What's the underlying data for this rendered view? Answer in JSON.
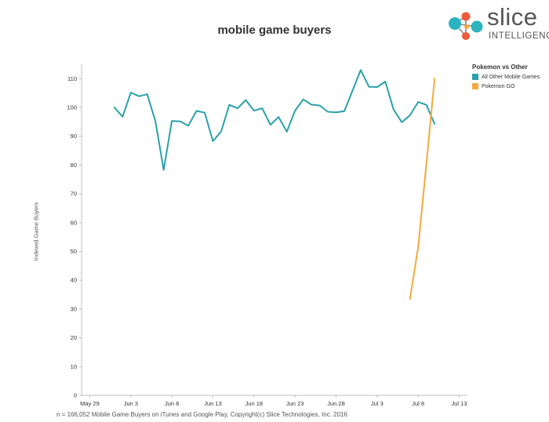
{
  "header": {
    "title": "mobile game buyers"
  },
  "logo": {
    "word": "slice",
    "sub": "INTELLIGENCE"
  },
  "footnote": "n = 166,052 Mobile Game Buyers on iTunes and Google Play, Copyright(c) Slice Technologies, Inc. 2016",
  "colors": {
    "teal": "#2aa1ab",
    "orange": "#f5a93b",
    "axis": "#bfbfbf",
    "grid": "#e8e8e8",
    "logo_red": "#ef5a3a",
    "logo_teal": "#2bb3c0",
    "logo_orange": "#f5a93b"
  },
  "chart_data": {
    "type": "line",
    "title": "mobile game buyers",
    "ylabel": "Indexed Game Buyers",
    "xlabel": "",
    "ylim": [
      0,
      115
    ],
    "xlim": [
      "2016-05-28",
      "2016-07-14"
    ],
    "yticks": [
      0,
      10,
      20,
      30,
      40,
      50,
      60,
      70,
      80,
      90,
      100,
      110
    ],
    "xticks": [
      {
        "date": "2016-05-29",
        "label": "May 29"
      },
      {
        "date": "2016-06-03",
        "label": "Jun 3"
      },
      {
        "date": "2016-06-08",
        "label": "Jun 8"
      },
      {
        "date": "2016-06-13",
        "label": "Jun 13"
      },
      {
        "date": "2016-06-18",
        "label": "Jun 18"
      },
      {
        "date": "2016-06-23",
        "label": "Jun 23"
      },
      {
        "date": "2016-06-28",
        "label": "Jun 28"
      },
      {
        "date": "2016-07-03",
        "label": "Jul 3"
      },
      {
        "date": "2016-07-08",
        "label": "Jul 8"
      },
      {
        "date": "2016-07-13",
        "label": "Jul 13"
      }
    ],
    "legend": {
      "title": "Pokemon vs Other",
      "position": "right"
    },
    "series": [
      {
        "name": "All Other Mobile Games",
        "color": "#2aa1ab",
        "x": [
          "2016-06-01",
          "2016-06-02",
          "2016-06-03",
          "2016-06-04",
          "2016-06-05",
          "2016-06-06",
          "2016-06-07",
          "2016-06-08",
          "2016-06-09",
          "2016-06-10",
          "2016-06-11",
          "2016-06-12",
          "2016-06-13",
          "2016-06-14",
          "2016-06-15",
          "2016-06-16",
          "2016-06-17",
          "2016-06-18",
          "2016-06-19",
          "2016-06-20",
          "2016-06-21",
          "2016-06-22",
          "2016-06-23",
          "2016-06-24",
          "2016-06-25",
          "2016-06-26",
          "2016-06-27",
          "2016-06-28",
          "2016-06-29",
          "2016-06-30",
          "2016-07-01",
          "2016-07-02",
          "2016-07-03",
          "2016-07-04",
          "2016-07-05",
          "2016-07-06",
          "2016-07-07",
          "2016-07-08",
          "2016-07-09",
          "2016-07-10"
        ],
        "values": [
          100.0,
          96.8,
          105.2,
          103.9,
          104.6,
          95.2,
          78.3,
          95.3,
          95.2,
          93.7,
          98.8,
          98.2,
          88.3,
          91.7,
          100.9,
          99.7,
          102.6,
          98.9,
          99.7,
          94.0,
          96.7,
          91.6,
          98.9,
          102.8,
          101.0,
          100.7,
          98.5,
          98.3,
          98.7,
          105.8,
          113.0,
          107.2,
          107.1,
          109.0,
          99.3,
          94.9,
          97.3,
          101.9,
          100.9,
          94.3
        ]
      },
      {
        "name": "Pokemon GO",
        "color": "#f5a93b",
        "x": [
          "2016-07-07",
          "2016-07-08",
          "2016-07-09",
          "2016-07-10"
        ],
        "values": [
          33.5,
          51.5,
          80.5,
          110.0
        ]
      }
    ]
  }
}
